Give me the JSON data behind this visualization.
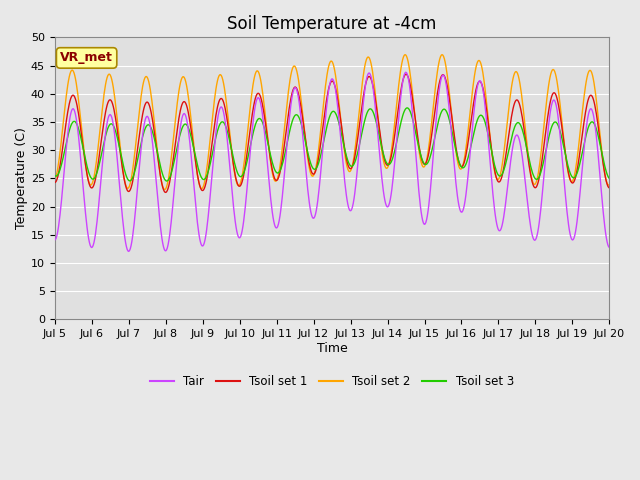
{
  "title": "Soil Temperature at -4cm",
  "xlabel": "Time",
  "ylabel": "Temperature (C)",
  "ylim": [
    0,
    50
  ],
  "yticks": [
    0,
    5,
    10,
    15,
    20,
    25,
    30,
    35,
    40,
    45,
    50
  ],
  "xtick_labels": [
    "Jul 5",
    "Jul 6",
    "Jul 7",
    "Jul 8",
    "Jul 9",
    "Jul 10",
    "Jul 11",
    "Jul 12",
    "Jul 13",
    "Jul 14",
    "Jul 15",
    "Jul 16",
    "Jul 17",
    "Jul 18",
    "Jul 19",
    "Jul 20"
  ],
  "colors": {
    "Tair": "#CC44FF",
    "Tsoil1": "#DD1111",
    "Tsoil2": "#FFA500",
    "Tsoil3": "#22CC00"
  },
  "background_color": "#E8E8E8",
  "plot_bg_color": "#E0E0E0",
  "legend_labels": [
    "Tair",
    "Tsoil set 1",
    "Tsoil set 2",
    "Tsoil set 3"
  ],
  "annotation_text": "VR_met",
  "annotation_color": "#8B0000",
  "annotation_bg": "#FFFFA0",
  "title_fontsize": 12,
  "axis_label_fontsize": 9,
  "tick_fontsize": 8
}
